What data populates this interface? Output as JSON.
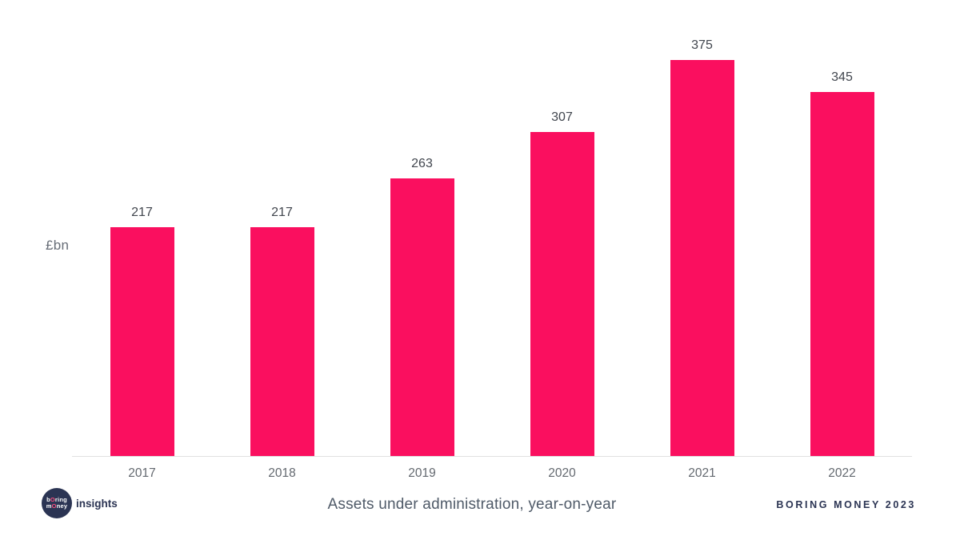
{
  "chart_data": {
    "type": "bar",
    "title": "Assets under administration, year-on-year",
    "ylabel": "£bn",
    "xlabel": "",
    "categories": [
      "2017",
      "2018",
      "2019",
      "2020",
      "2021",
      "2022"
    ],
    "values": [
      217,
      217,
      263,
      307,
      375,
      345
    ],
    "ylim": [
      0,
      432
    ],
    "grid": false,
    "legend": "none",
    "bar_color": "#FA0F5F",
    "value_labels_shown": true
  },
  "footer": {
    "logo": {
      "line1": "bOring",
      "line2": "mOney",
      "wordmark": "insights"
    },
    "credit": "BORING MONEY 2023"
  },
  "colors": {
    "background": "#FFFFFF",
    "bar": "#FA0F5F",
    "navy": "#2B3453",
    "value_label": "#41464E",
    "tick_label": "#63686F",
    "caption": "#4F5A68",
    "axis_line": "#E1E1E1"
  }
}
